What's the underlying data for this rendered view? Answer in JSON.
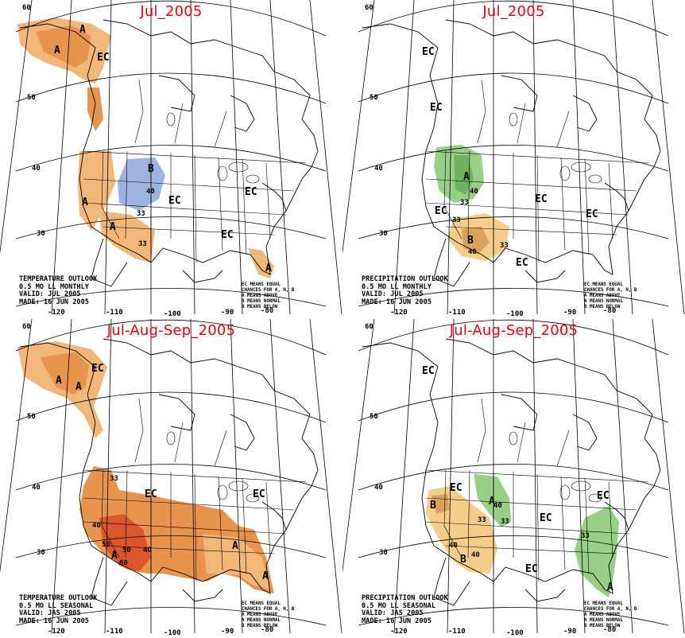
{
  "colors": {
    "above_light": "#f2b679",
    "above_mid": "#e8944f",
    "above_dark": "#d9572b",
    "below": "#9fb4dd",
    "wet": "#98cf86",
    "wet_dark": "#6fb35f",
    "dry": "#f4cd8a",
    "dry_dark": "#d7a25e",
    "title": "#e8000b"
  },
  "lon_labels": [
    "-120",
    "-110",
    "-100",
    "-90",
    "-80"
  ],
  "lat_labels": [
    "60",
    "50",
    "40",
    "30"
  ],
  "legend_lines": [
    "EC MEANS EQUAL",
    "CHANCES FOR A, N, B",
    "A MEANS ABOVE",
    "N MEANS NORMAL",
    "B MEANS BELOW"
  ],
  "panels": [
    {
      "id": "temp_monthly",
      "title": "Jul_2005",
      "info": [
        "TEMPERATURE OUTLOOK",
        "0.5 MO LL MONTHLY",
        "VALID: JUL 2005",
        "MADE: 16 JUN 2005"
      ],
      "labels": {
        "ec1": "EC",
        "ec2": "EC",
        "ec3": "EC",
        "ec4": "EC",
        "a1": "A",
        "a2": "A",
        "a3": "A",
        "a4": "A",
        "a5": "A",
        "b1": "B",
        "c1": "40",
        "c2": "33",
        "c3": "33"
      }
    },
    {
      "id": "precip_monthly",
      "title": "Jul_2005",
      "info": [
        "PRECIPITATION OUTLOOK",
        "0.5 MO LL MONTHLY",
        "VALID: JUL 2005",
        "MADE: 16 JUN 2005"
      ],
      "labels": {
        "ec1": "EC",
        "ec2": "EC",
        "ec3": "EC",
        "ec4": "EC",
        "ec5": "EC",
        "ec6": "EC",
        "a1": "A",
        "b1": "B",
        "c1": "40",
        "c2": "33",
        "c3": "33",
        "c4": "33",
        "c5": "40"
      }
    },
    {
      "id": "temp_seasonal",
      "title": "Jul-Aug-Sep_2005",
      "info": [
        "TEMPERATURE OUTLOOK",
        "0.5 MO LL SEASONAL",
        "VALID: JAS 2005",
        "MADE: 16 JUN 2005"
      ],
      "labels": {
        "ec1": "EC",
        "ec2": "EC",
        "ec3": "EC",
        "a1": "A",
        "a2": "A",
        "a3": "A",
        "a4": "A",
        "a5": "A",
        "c1": "33",
        "c2": "40",
        "c3": "50",
        "c4": "50",
        "c5": "40",
        "c6": "60"
      }
    },
    {
      "id": "precip_seasonal",
      "title": "Jul-Aug-Sep_2005",
      "info": [
        "PRECIPITATION OUTLOOK",
        "0.5 MO LL SEASONAL",
        "VALID: JAS 2005",
        "MADE: 16 JUN 2005"
      ],
      "labels": {
        "ec1": "EC",
        "ec2": "EC",
        "ec3": "EC",
        "ec4": "EC",
        "ec5": "EC",
        "a1": "A",
        "a2": "A",
        "b1": "B",
        "b2": "B",
        "c1": "40",
        "c2": "33",
        "c3": "33",
        "c4": "40",
        "c5": "40",
        "c6": "33"
      }
    }
  ]
}
